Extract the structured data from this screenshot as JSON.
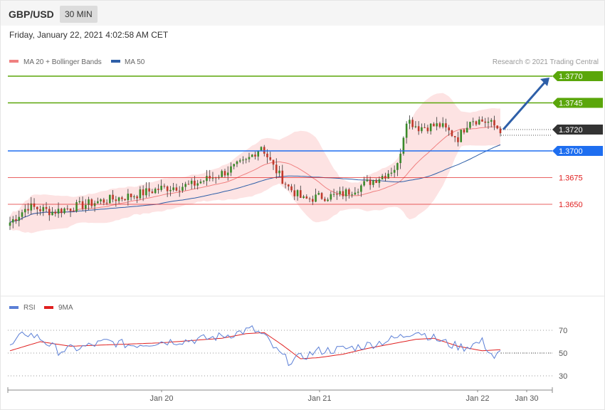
{
  "header": {
    "symbol": "GBP/USD",
    "timeframe": "30 MIN"
  },
  "datetime": "Friday, January 22, 2021 4:02:58 AM CET",
  "legend": {
    "main": [
      {
        "label": "MA 20 + Bollinger Bands",
        "color": "#f08080"
      },
      {
        "label": "MA 50",
        "color": "#2e5fa8"
      }
    ],
    "copyright": "Research © 2021 Trading Central",
    "rsi": [
      {
        "label": "RSI",
        "color": "#5b7fd6"
      },
      {
        "label": "9MA",
        "color": "#e02020"
      }
    ]
  },
  "chart_data": [
    {
      "type": "candlestick",
      "ylim": [
        1.3625,
        1.379
      ],
      "levels": [
        {
          "value": 1.377,
          "label": "1.3770",
          "kind": "resistance",
          "color": "#5aa60a"
        },
        {
          "value": 1.3745,
          "label": "1.3745",
          "kind": "resistance",
          "color": "#5aa60a"
        },
        {
          "value": 1.372,
          "label": "1.3720",
          "kind": "last-price",
          "color": "#333333"
        },
        {
          "value": 1.37,
          "label": "1.3700",
          "kind": "pivot",
          "color": "#1e6ef0"
        },
        {
          "value": 1.3675,
          "label": "1.3675",
          "kind": "support",
          "color": "#e02020"
        },
        {
          "value": 1.365,
          "label": "1.3650",
          "kind": "support",
          "color": "#e02020"
        }
      ],
      "arrow": {
        "from": 1.372,
        "to": 1.377,
        "direction": "up"
      },
      "x_ticks": [
        "Jan 20",
        "Jan 21",
        "Jan 22",
        "Jan 30"
      ],
      "trend_keypoints": [
        [
          0,
          1.3633
        ],
        [
          6,
          1.3648
        ],
        [
          14,
          1.3643
        ],
        [
          22,
          1.3648
        ],
        [
          30,
          1.3653
        ],
        [
          40,
          1.3658
        ],
        [
          50,
          1.3665
        ],
        [
          60,
          1.3668
        ],
        [
          70,
          1.3679
        ],
        [
          78,
          1.369
        ],
        [
          83,
          1.3705
        ],
        [
          87,
          1.3685
        ],
        [
          92,
          1.3666
        ],
        [
          97,
          1.3654
        ],
        [
          102,
          1.3657
        ],
        [
          108,
          1.3658
        ],
        [
          112,
          1.3662
        ],
        [
          118,
          1.367
        ],
        [
          124,
          1.3678
        ],
        [
          128,
          1.3686
        ],
        [
          131,
          1.373
        ],
        [
          135,
          1.3722
        ],
        [
          142,
          1.3724
        ],
        [
          148,
          1.3712
        ],
        [
          152,
          1.373
        ],
        [
          158,
          1.3727
        ],
        [
          162,
          1.372
        ]
      ],
      "candle_count": 163
    },
    {
      "type": "line",
      "title": "RSI",
      "ylim": [
        20,
        80
      ],
      "y_ticks": [
        70,
        50,
        30
      ],
      "rsi_keypoints": [
        [
          0,
          55
        ],
        [
          5,
          68
        ],
        [
          10,
          63
        ],
        [
          16,
          52
        ],
        [
          24,
          55
        ],
        [
          32,
          60
        ],
        [
          40,
          57
        ],
        [
          50,
          60
        ],
        [
          58,
          61
        ],
        [
          66,
          63
        ],
        [
          74,
          67
        ],
        [
          80,
          71
        ],
        [
          84,
          65
        ],
        [
          88,
          52
        ],
        [
          92,
          43
        ],
        [
          96,
          46
        ],
        [
          102,
          52
        ],
        [
          108,
          53
        ],
        [
          114,
          55
        ],
        [
          120,
          58
        ],
        [
          126,
          62
        ],
        [
          130,
          65
        ],
        [
          134,
          70
        ],
        [
          140,
          63
        ],
        [
          146,
          57
        ],
        [
          150,
          55
        ],
        [
          156,
          60
        ],
        [
          160,
          46
        ],
        [
          162,
          50
        ]
      ],
      "ma9_keypoints": [
        [
          0,
          52
        ],
        [
          10,
          60
        ],
        [
          20,
          56
        ],
        [
          30,
          57
        ],
        [
          40,
          58
        ],
        [
          50,
          59
        ],
        [
          60,
          61
        ],
        [
          70,
          63
        ],
        [
          78,
          67
        ],
        [
          84,
          68
        ],
        [
          90,
          57
        ],
        [
          96,
          45
        ],
        [
          102,
          46
        ],
        [
          110,
          49
        ],
        [
          118,
          54
        ],
        [
          126,
          58
        ],
        [
          134,
          62
        ],
        [
          140,
          63
        ],
        [
          148,
          56
        ],
        [
          156,
          52
        ],
        [
          162,
          53
        ]
      ]
    }
  ]
}
